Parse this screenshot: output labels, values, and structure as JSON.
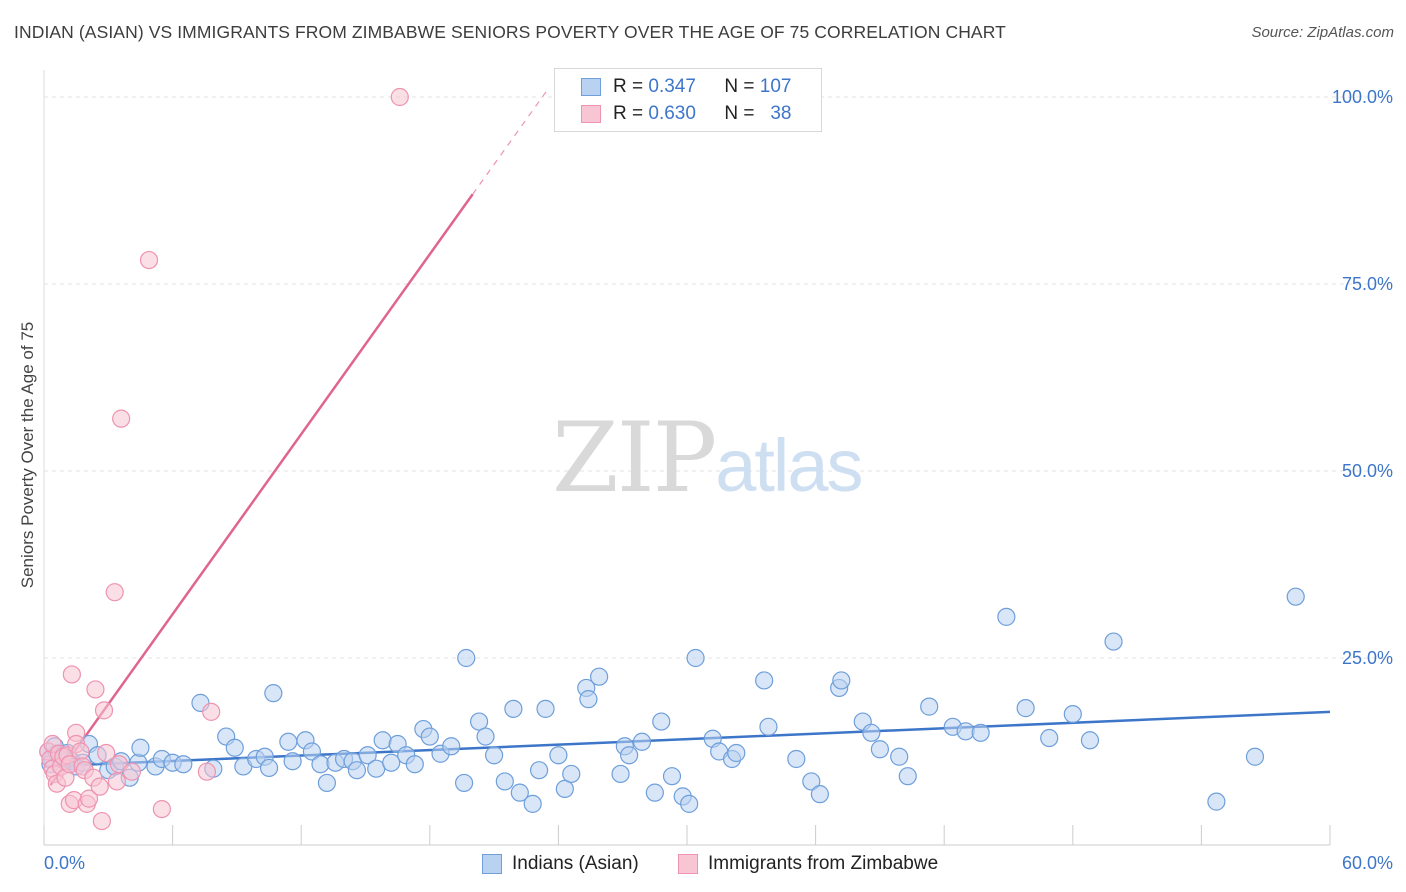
{
  "title": "INDIAN (ASIAN) VS IMMIGRANTS FROM ZIMBABWE SENIORS POVERTY OVER THE AGE OF 75 CORRELATION CHART",
  "source": "Source: ZipAtlas.com",
  "watermark": {
    "zip": "ZIP",
    "atlas": "atlas"
  },
  "colors": {
    "blue": "#3d76c9",
    "blue_fill": "#b9d2f1",
    "blue_stroke": "#6e9fdb",
    "pink": "#e0658e",
    "pink_fill": "#f8c5d4",
    "pink_stroke": "#ee93b0",
    "grid": "#e3e3e3",
    "tick_label": "#3d76c9"
  },
  "legend_top": {
    "rows": [
      {
        "r_label": "R =",
        "r_value": "0.347",
        "n_label": "N =",
        "n_value": "107"
      },
      {
        "r_label": "R =",
        "r_value": "0.630",
        "n_label": "N =",
        "n_value": "38"
      }
    ]
  },
  "legend_bottom": {
    "items": [
      "Indians (Asian)",
      "Immigrants from Zimbabwe"
    ]
  },
  "chart_data": {
    "type": "scatter",
    "title": "INDIAN (ASIAN) VS IMMIGRANTS FROM ZIMBABWE SENIORS POVERTY OVER THE AGE OF 75 CORRELATION CHART",
    "xlabel": "",
    "ylabel": "Seniors Poverty Over the Age of 75",
    "xlim": [
      0,
      60
    ],
    "ylim": [
      0,
      100
    ],
    "x_tick_labels": [
      "0.0%",
      "60.0%"
    ],
    "y_tick_labels": [
      "100.0%",
      "75.0%",
      "50.0%",
      "25.0%"
    ],
    "y_ticks": [
      100,
      75,
      50,
      25
    ],
    "grid": true,
    "legend_position": "bottom",
    "series": [
      {
        "name": "Indians (Asian)",
        "color": "#3d76c9",
        "R": 0.347,
        "N": 107,
        "trend": {
          "x0": 0,
          "y0": 10.5,
          "x1": 60,
          "y1": 17.8
        },
        "points": [
          [
            0.2,
            12.5
          ],
          [
            0.4,
            11.5
          ],
          [
            0.5,
            13.2
          ],
          [
            0.6,
            12.2
          ],
          [
            0.7,
            11.8
          ],
          [
            0.8,
            12.0
          ],
          [
            0.9,
            11.5
          ],
          [
            1.0,
            11.2
          ],
          [
            1.1,
            12.3
          ],
          [
            1.3,
            11.2
          ],
          [
            1.5,
            10.5
          ],
          [
            1.8,
            11.0
          ],
          [
            2.1,
            13.5
          ],
          [
            2.5,
            12.0
          ],
          [
            3.0,
            10.0
          ],
          [
            3.3,
            10.5
          ],
          [
            3.6,
            11.2
          ],
          [
            4.0,
            9.0
          ],
          [
            4.4,
            11.0
          ],
          [
            4.5,
            13.0
          ],
          [
            5.2,
            10.5
          ],
          [
            5.5,
            11.5
          ],
          [
            6.0,
            11.0
          ],
          [
            6.5,
            10.8
          ],
          [
            7.3,
            19.0
          ],
          [
            7.9,
            10.2
          ],
          [
            8.5,
            14.5
          ],
          [
            8.9,
            13.0
          ],
          [
            9.3,
            10.5
          ],
          [
            9.9,
            11.5
          ],
          [
            10.3,
            11.8
          ],
          [
            10.5,
            10.3
          ],
          [
            10.7,
            20.3
          ],
          [
            11.4,
            13.8
          ],
          [
            11.6,
            11.2
          ],
          [
            12.2,
            14.0
          ],
          [
            12.5,
            12.5
          ],
          [
            12.9,
            10.8
          ],
          [
            13.2,
            8.3
          ],
          [
            13.6,
            11.0
          ],
          [
            14.0,
            11.5
          ],
          [
            14.4,
            11.2
          ],
          [
            14.6,
            10.0
          ],
          [
            15.1,
            12.0
          ],
          [
            15.5,
            10.2
          ],
          [
            15.8,
            14.0
          ],
          [
            16.2,
            11.0
          ],
          [
            16.5,
            13.5
          ],
          [
            16.9,
            12.0
          ],
          [
            17.3,
            10.8
          ],
          [
            17.7,
            15.5
          ],
          [
            18.0,
            14.5
          ],
          [
            18.5,
            12.2
          ],
          [
            19.0,
            13.2
          ],
          [
            19.6,
            8.3
          ],
          [
            19.7,
            25.0
          ],
          [
            20.3,
            16.5
          ],
          [
            20.6,
            14.5
          ],
          [
            21.0,
            12.0
          ],
          [
            21.5,
            8.5
          ],
          [
            21.9,
            18.2
          ],
          [
            22.2,
            7.0
          ],
          [
            22.8,
            5.5
          ],
          [
            23.1,
            10.0
          ],
          [
            23.4,
            18.2
          ],
          [
            24.0,
            12.0
          ],
          [
            24.3,
            7.5
          ],
          [
            24.6,
            9.5
          ],
          [
            25.3,
            21.0
          ],
          [
            25.4,
            19.5
          ],
          [
            25.9,
            22.5
          ],
          [
            26.9,
            9.5
          ],
          [
            27.1,
            13.2
          ],
          [
            27.3,
            12.0
          ],
          [
            27.9,
            13.8
          ],
          [
            28.5,
            7.0
          ],
          [
            28.8,
            16.5
          ],
          [
            29.3,
            9.2
          ],
          [
            29.8,
            6.5
          ],
          [
            30.1,
            5.5
          ],
          [
            30.4,
            25.0
          ],
          [
            31.2,
            14.2
          ],
          [
            31.5,
            12.5
          ],
          [
            32.1,
            11.5
          ],
          [
            32.3,
            12.3
          ],
          [
            33.6,
            22.0
          ],
          [
            33.8,
            15.8
          ],
          [
            35.1,
            11.5
          ],
          [
            35.8,
            8.5
          ],
          [
            36.2,
            6.8
          ],
          [
            37.1,
            21.0
          ],
          [
            37.2,
            22.0
          ],
          [
            38.2,
            16.5
          ],
          [
            38.6,
            15.0
          ],
          [
            39.0,
            12.8
          ],
          [
            39.9,
            11.8
          ],
          [
            40.3,
            9.2
          ],
          [
            41.3,
            18.5
          ],
          [
            42.4,
            15.8
          ],
          [
            43.0,
            15.2
          ],
          [
            43.7,
            15.0
          ],
          [
            44.9,
            30.5
          ],
          [
            45.8,
            18.3
          ],
          [
            46.9,
            14.3
          ],
          [
            48.0,
            17.5
          ],
          [
            48.8,
            14.0
          ],
          [
            49.9,
            27.2
          ],
          [
            54.7,
            5.8
          ],
          [
            56.5,
            11.8
          ],
          [
            58.4,
            33.2
          ],
          [
            0.3,
            10.8
          ]
        ]
      },
      {
        "name": "Immigrants from Zimbabwe",
        "color": "#e0658e",
        "R": 0.63,
        "N": 38,
        "trend": {
          "x0": 0.3,
          "y0": 8.0,
          "x1": 20,
          "y1": 87.0
        },
        "trend_dashed": {
          "x0": 20,
          "y0": 87.0,
          "x1": 23.5,
          "y1": 101.0
        },
        "points": [
          [
            0.2,
            12.5
          ],
          [
            0.3,
            11.5
          ],
          [
            0.4,
            13.5
          ],
          [
            0.4,
            10.2
          ],
          [
            0.5,
            9.5
          ],
          [
            0.6,
            8.2
          ],
          [
            0.7,
            12.2
          ],
          [
            0.8,
            10.5
          ],
          [
            0.9,
            11.8
          ],
          [
            1.0,
            9.0
          ],
          [
            1.1,
            12.0
          ],
          [
            1.2,
            10.8
          ],
          [
            1.2,
            5.5
          ],
          [
            1.3,
            22.8
          ],
          [
            1.4,
            6.0
          ],
          [
            1.5,
            15.0
          ],
          [
            1.5,
            13.5
          ],
          [
            1.7,
            12.5
          ],
          [
            1.8,
            10.5
          ],
          [
            1.9,
            10.0
          ],
          [
            2.0,
            5.5
          ],
          [
            2.1,
            6.2
          ],
          [
            2.3,
            9.0
          ],
          [
            2.4,
            20.8
          ],
          [
            2.6,
            7.8
          ],
          [
            2.7,
            3.2
          ],
          [
            2.8,
            18.0
          ],
          [
            3.3,
            33.8
          ],
          [
            3.4,
            8.5
          ],
          [
            2.9,
            12.3
          ],
          [
            3.5,
            10.8
          ],
          [
            3.6,
            57.0
          ],
          [
            4.1,
            9.8
          ],
          [
            4.9,
            78.2
          ],
          [
            5.5,
            4.8
          ],
          [
            7.6,
            9.8
          ],
          [
            7.8,
            17.8
          ],
          [
            16.6,
            100.0
          ]
        ]
      }
    ]
  }
}
